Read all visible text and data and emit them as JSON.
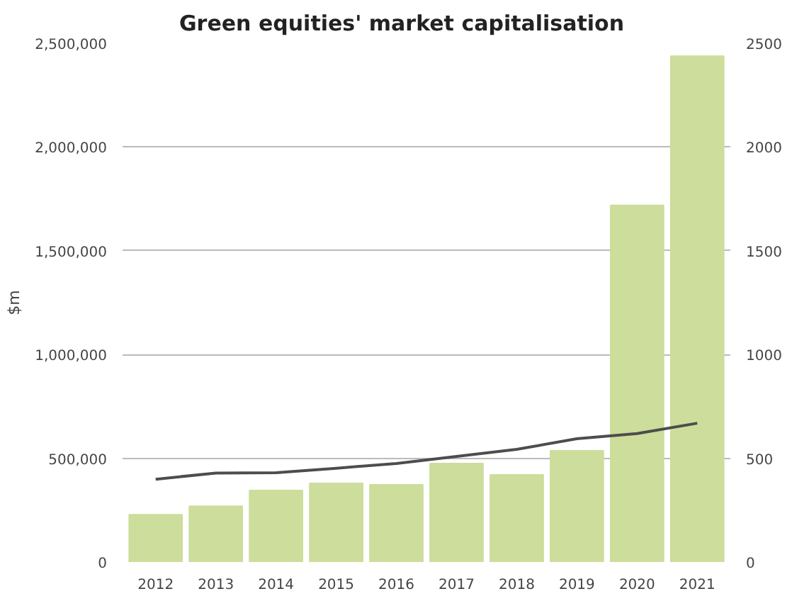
{
  "chart_data": {
    "type": "bar",
    "title": "Green equities' market capitalisation",
    "ylabel": "$m",
    "categories": [
      "2012",
      "2013",
      "2014",
      "2015",
      "2016",
      "2017",
      "2018",
      "2019",
      "2020",
      "2021"
    ],
    "series": [
      {
        "color": "#cddd9b",
        "values": [
          228000,
          269000,
          345000,
          379000,
          372000,
          475000,
          420000,
          536000,
          1719000,
          2438000
        ]
      },
      {
        "type": "line",
        "axis": "y2",
        "color": "#4d4d4d",
        "values": [
          399,
          429,
          430,
          452,
          475,
          509,
          543,
          594,
          619,
          669
        ]
      }
    ],
    "ylim": [
      0,
      2500000
    ],
    "yticks": [
      {
        "value": 0,
        "label": "0"
      },
      {
        "value": 500000,
        "label": "500,000"
      },
      {
        "value": 1000000,
        "label": "1,000,000"
      },
      {
        "value": 1500000,
        "label": "1,500,000"
      },
      {
        "value": 2000000,
        "label": "2,000,000"
      },
      {
        "value": 2500000,
        "label": "2,500,000"
      }
    ],
    "y2lim": [
      0,
      2500
    ],
    "y2ticks": [
      0,
      500,
      1000,
      1500,
      2000,
      2500
    ],
    "grid": "y"
  }
}
